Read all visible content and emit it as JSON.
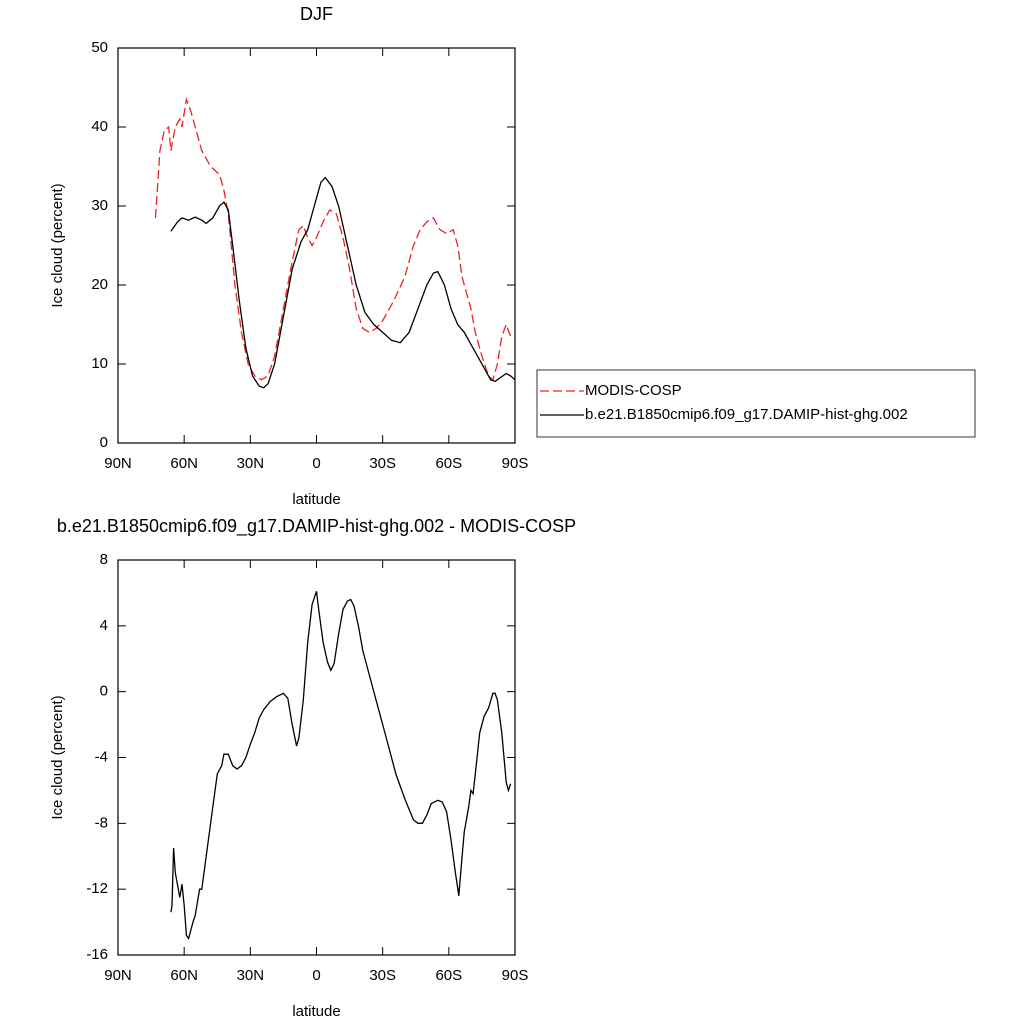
{
  "chart_data": [
    {
      "type": "line",
      "title": "DJF",
      "xlabel": "latitude",
      "ylabel": "Ice cloud (percent)",
      "xlim": [
        90,
        -90
      ],
      "xticks": [
        {
          "value": 90,
          "label": "90N"
        },
        {
          "value": 60,
          "label": "60N"
        },
        {
          "value": 30,
          "label": "30N"
        },
        0,
        {
          "value": -30,
          "label": "30S"
        },
        {
          "value": -60,
          "label": "60S"
        },
        {
          "value": -90,
          "label": "90S"
        }
      ],
      "ylim": [
        0,
        50
      ],
      "yticks": [
        0,
        10,
        20,
        30,
        40,
        50
      ],
      "legend": "right",
      "series": [
        {
          "name": "MODIS-COSP",
          "color": "#e8242a",
          "dash": true,
          "x": [
            73,
            71,
            69,
            67,
            66,
            64,
            62,
            61,
            59,
            57,
            55,
            52,
            48,
            44,
            42,
            40,
            37,
            34,
            31,
            28,
            25,
            22,
            19,
            15,
            11,
            8,
            6,
            4,
            2,
            0,
            -3,
            -6,
            -9,
            -12,
            -15,
            -18,
            -21,
            -24,
            -27,
            -30,
            -35,
            -40,
            -44,
            -47,
            -50,
            -53,
            -56,
            -59,
            -62,
            -64,
            -66,
            -68,
            -70,
            -72,
            -75,
            -78,
            -80,
            -82,
            -84,
            -86,
            -88
          ],
          "values": [
            28.5,
            37,
            39.5,
            40,
            37,
            40,
            41,
            40,
            43.5,
            42,
            40,
            37,
            35,
            34,
            32,
            29,
            20,
            14,
            10,
            8.5,
            8,
            8.5,
            11,
            17,
            23,
            27,
            27.5,
            26,
            25,
            26,
            28,
            29.5,
            29,
            26,
            22,
            17,
            14.5,
            14,
            14.5,
            15.5,
            18,
            21,
            25,
            27,
            28,
            28.5,
            27,
            26.5,
            27,
            25,
            21,
            19,
            17,
            14,
            11,
            8.5,
            8,
            10,
            13.5,
            15,
            13.5
          ]
        },
        {
          "name": "b.e21.B1850cmip6.f09_g17.DAMIP-hist-ghg.002",
          "color": "#000000",
          "dash": false,
          "x": [
            66,
            63,
            61,
            58,
            55,
            52,
            50,
            47,
            44,
            42,
            40,
            38,
            35,
            32,
            29,
            26,
            24,
            22,
            19,
            15,
            11,
            7,
            4,
            1,
            -2,
            -4,
            -7,
            -10,
            -14,
            -18,
            -22,
            -26,
            -30,
            -34,
            -38,
            -42,
            -46,
            -50,
            -53,
            -55,
            -58,
            -61,
            -64,
            -67,
            -70,
            -73,
            -76,
            -79,
            -81,
            -83,
            -86,
            -88,
            -90
          ],
          "values": [
            26.8,
            28,
            28.5,
            28.2,
            28.6,
            28.2,
            27.8,
            28.5,
            30,
            30.5,
            29.5,
            25,
            18,
            12,
            8.5,
            7.2,
            7,
            7.5,
            10,
            16,
            22,
            25.5,
            27,
            30,
            33,
            33.6,
            32.5,
            30,
            25,
            20,
            16.5,
            15,
            14,
            13,
            12.7,
            14,
            17,
            20,
            21.5,
            21.7,
            20,
            17,
            15,
            14,
            12.5,
            11,
            9.5,
            8,
            7.8,
            8.2,
            8.8,
            8.5,
            8
          ]
        }
      ]
    },
    {
      "type": "line",
      "title": "b.e21.B1850cmip6.f09_g17.DAMIP-hist-ghg.002 - MODIS-COSP",
      "xlabel": "latitude",
      "ylabel": "Ice cloud (percent)",
      "xlim": [
        90,
        -90
      ],
      "xticks": [
        {
          "value": 90,
          "label": "90N"
        },
        {
          "value": 60,
          "label": "60N"
        },
        {
          "value": 30,
          "label": "30N"
        },
        0,
        {
          "value": -30,
          "label": "30S"
        },
        {
          "value": -60,
          "label": "60S"
        },
        {
          "value": -90,
          "label": "90S"
        }
      ],
      "ylim": [
        -16,
        8
      ],
      "yticks": [
        -16,
        -12,
        -8,
        -4,
        0,
        4,
        8
      ],
      "series": [
        {
          "color": "#000000",
          "dash": false,
          "x": [
            66,
            65.5,
            64.8,
            64,
            62,
            61,
            60,
            59,
            58,
            56,
            55,
            53,
            52,
            50,
            47,
            45,
            43,
            42,
            40,
            38,
            36,
            34,
            32,
            30,
            28,
            26,
            24,
            21,
            18,
            15,
            13,
            11,
            9,
            8,
            6,
            4,
            2,
            0,
            -1,
            -3,
            -5,
            -6.5,
            -8,
            -10,
            -12,
            -14,
            -15.5,
            -17,
            -19,
            -21,
            -23,
            -26,
            -29,
            -32,
            -36,
            -40,
            -44,
            -46,
            -48,
            -50,
            -52,
            -55,
            -57,
            -59,
            -61,
            -63,
            -64.5,
            -66,
            -67,
            -69,
            -70,
            -71,
            -72,
            -74,
            -76,
            -78,
            -80,
            -81,
            -82,
            -84,
            -86,
            -87,
            -88
          ],
          "values": [
            -13.4,
            -13,
            -9.5,
            -11,
            -12.5,
            -11.7,
            -13,
            -14.8,
            -15,
            -14,
            -13.6,
            -12,
            -12,
            -10,
            -7,
            -5,
            -4.5,
            -3.8,
            -3.8,
            -4.5,
            -4.7,
            -4.5,
            -4,
            -3.2,
            -2.5,
            -1.6,
            -1.1,
            -0.6,
            -0.3,
            -0.1,
            -0.4,
            -2,
            -3.3,
            -2.8,
            -0.5,
            3,
            5.3,
            6.1,
            5,
            3,
            1.8,
            1.3,
            1.7,
            3.5,
            5,
            5.5,
            5.6,
            5.2,
            4,
            2.5,
            1.5,
            0,
            -1.5,
            -3,
            -5,
            -6.5,
            -7.8,
            -8,
            -8,
            -7.5,
            -6.8,
            -6.6,
            -6.7,
            -7.3,
            -9,
            -11,
            -12.4,
            -10,
            -8.5,
            -7,
            -6,
            -6.2,
            -5,
            -2.5,
            -1.5,
            -1,
            -0.1,
            -0.1,
            -0.5,
            -2.5,
            -5.5,
            -6,
            -5.6
          ]
        }
      ]
    }
  ]
}
